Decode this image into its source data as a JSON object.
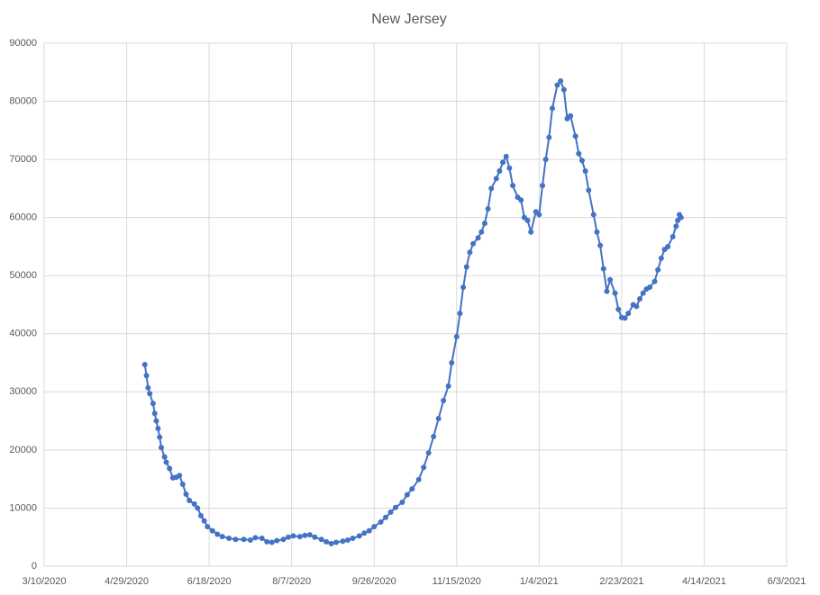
{
  "chart_data": {
    "type": "line",
    "title": "New Jersey",
    "x": [
      "5/10/2020",
      "5/11/2020",
      "5/12/2020",
      "5/13/2020",
      "5/15/2020",
      "5/16/2020",
      "5/17/2020",
      "5/18/2020",
      "5/19/2020",
      "5/20/2020",
      "5/22/2020",
      "5/23/2020",
      "5/25/2020",
      "5/27/2020",
      "5/29/2020",
      "5/31/2020",
      "6/2/2020",
      "6/4/2020",
      "6/6/2020",
      "6/9/2020",
      "6/11/2020",
      "6/13/2020",
      "6/15/2020",
      "6/17/2020",
      "6/20/2020",
      "6/23/2020",
      "6/26/2020",
      "6/30/2020",
      "7/4/2020",
      "7/9/2020",
      "7/13/2020",
      "7/16/2020",
      "7/20/2020",
      "7/23/2020",
      "7/26/2020",
      "7/29/2020",
      "8/2/2020",
      "8/5/2020",
      "8/8/2020",
      "8/12/2020",
      "8/15/2020",
      "8/18/2020",
      "8/21/2020",
      "8/25/2020",
      "8/28/2020",
      "8/31/2020",
      "9/3/2020",
      "9/7/2020",
      "9/10/2020",
      "9/13/2020",
      "9/17/2020",
      "9/20/2020",
      "9/23/2020",
      "9/26/2020",
      "9/30/2020",
      "10/3/2020",
      "10/6/2020",
      "10/9/2020",
      "10/13/2020",
      "10/16/2020",
      "10/19/2020",
      "10/23/2020",
      "10/26/2020",
      "10/29/2020",
      "11/1/2020",
      "11/4/2020",
      "11/7/2020",
      "11/10/2020",
      "11/12/2020",
      "11/15/2020",
      "11/17/2020",
      "11/19/2020",
      "11/21/2020",
      "11/23/2020",
      "11/25/2020",
      "11/28/2020",
      "11/30/2020",
      "12/2/2020",
      "12/4/2020",
      "12/6/2020",
      "12/9/2020",
      "12/11/2020",
      "12/13/2020",
      "12/15/2020",
      "12/17/2020",
      "12/19/2020",
      "12/22/2020",
      "12/24/2020",
      "12/26/2020",
      "12/28/2020",
      "12/30/2020",
      "1/2/2021",
      "1/4/2021",
      "1/6/2021",
      "1/8/2021",
      "1/10/2021",
      "1/12/2021",
      "1/15/2021",
      "1/17/2021",
      "1/19/2021",
      "1/21/2021",
      "1/23/2021",
      "1/26/2021",
      "1/28/2021",
      "1/30/2021",
      "2/1/2021",
      "2/3/2021",
      "2/6/2021",
      "2/8/2021",
      "2/10/2021",
      "2/12/2021",
      "2/14/2021",
      "2/16/2021",
      "2/19/2021",
      "2/21/2021",
      "2/23/2021",
      "2/25/2021",
      "2/27/2021",
      "3/2/2021",
      "3/4/2021",
      "3/6/2021",
      "3/8/2021",
      "3/10/2021",
      "3/12/2021",
      "3/15/2021",
      "3/17/2021",
      "3/19/2021",
      "3/21/2021",
      "3/23/2021",
      "3/26/2021",
      "3/28/2021",
      "3/29/2021",
      "3/30/2021",
      "3/31/2021"
    ],
    "series": [
      {
        "color": "#4472c4",
        "values": [
          34700,
          32800,
          30700,
          29700,
          28000,
          26300,
          25000,
          23700,
          22200,
          20400,
          18800,
          17900,
          16800,
          15200,
          15300,
          15600,
          14100,
          12400,
          11300,
          10700,
          10000,
          8700,
          7800,
          6800,
          6100,
          5500,
          5100,
          4800,
          4600,
          4600,
          4500,
          4900,
          4800,
          4200,
          4100,
          4400,
          4600,
          5000,
          5200,
          5100,
          5300,
          5400,
          5000,
          4600,
          4200,
          3900,
          4100,
          4300,
          4500,
          4800,
          5200,
          5700,
          6100,
          6800,
          7600,
          8400,
          9300,
          10100,
          11000,
          12300,
          13300,
          14900,
          17000,
          19500,
          22300,
          25400,
          28500,
          31000,
          35000,
          39500,
          43500,
          48000,
          51500,
          54000,
          55500,
          56500,
          57500,
          59000,
          61500,
          65000,
          66700,
          68000,
          69500,
          70500,
          68500,
          65500,
          63500,
          63000,
          60000,
          59500,
          57500,
          61000,
          60500,
          65500,
          70000,
          73800,
          78800,
          82800,
          83500,
          82000,
          77000,
          77500,
          74000,
          71000,
          69800,
          68000,
          64700,
          60500,
          57500,
          55200,
          51200,
          47300,
          49300,
          47000,
          44200,
          42800,
          42700,
          43500,
          45000,
          44700,
          46000,
          47000,
          47700,
          48000,
          49000,
          51000,
          53000,
          54500,
          55000,
          56700,
          58500,
          59500,
          60500,
          60000
        ]
      }
    ],
    "xlim": [
      "3/10/2020",
      "6/3/2021"
    ],
    "xticks": [
      "3/10/2020",
      "4/29/2020",
      "6/18/2020",
      "8/7/2020",
      "9/26/2020",
      "11/15/2020",
      "1/4/2021",
      "2/23/2021",
      "4/14/2021",
      "6/3/2021"
    ],
    "ylim": [
      0,
      90000
    ],
    "yticks": [
      0,
      10000,
      20000,
      30000,
      40000,
      50000,
      60000,
      70000,
      80000,
      90000
    ],
    "grid": true
  }
}
